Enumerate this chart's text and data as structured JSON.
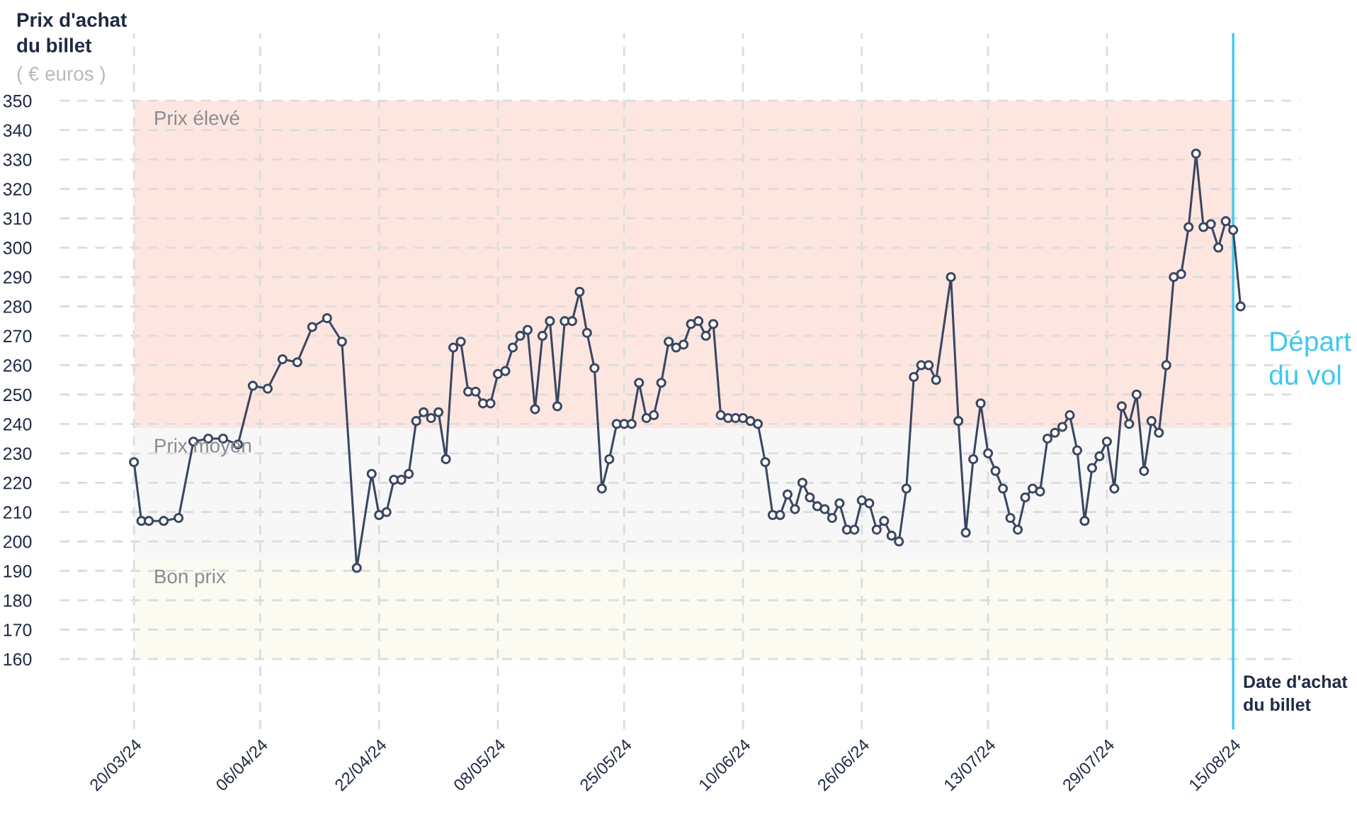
{
  "chart_data": {
    "type": "line",
    "xlabel": "Date d'achat\ndu billet",
    "ylabel": "Prix d'achat\ndu billet",
    "annotations": [
      "( € euros )"
    ],
    "x": [
      "2024-03-20",
      "2024-03-21",
      "2024-03-22",
      "2024-03-24",
      "2024-03-26",
      "2024-03-28",
      "2024-03-30",
      "2024-04-01",
      "2024-04-03",
      "2024-04-05",
      "2024-04-07",
      "2024-04-09",
      "2024-04-11",
      "2024-04-13",
      "2024-04-15",
      "2024-04-17",
      "2024-04-19",
      "2024-04-21",
      "2024-04-22",
      "2024-04-23",
      "2024-04-24",
      "2024-04-25",
      "2024-04-26",
      "2024-04-27",
      "2024-04-28",
      "2024-04-29",
      "2024-04-30",
      "2024-05-01",
      "2024-05-02",
      "2024-05-03",
      "2024-05-04",
      "2024-05-05",
      "2024-05-06",
      "2024-05-07",
      "2024-05-08",
      "2024-05-09",
      "2024-05-10",
      "2024-05-11",
      "2024-05-12",
      "2024-05-13",
      "2024-05-14",
      "2024-05-15",
      "2024-05-16",
      "2024-05-17",
      "2024-05-18",
      "2024-05-19",
      "2024-05-20",
      "2024-05-21",
      "2024-05-22",
      "2024-05-23",
      "2024-05-24",
      "2024-05-25",
      "2024-05-26",
      "2024-05-27",
      "2024-05-28",
      "2024-05-29",
      "2024-05-30",
      "2024-05-31",
      "2024-06-01",
      "2024-06-02",
      "2024-06-03",
      "2024-06-04",
      "2024-06-05",
      "2024-06-06",
      "2024-06-07",
      "2024-06-08",
      "2024-06-09",
      "2024-06-10",
      "2024-06-11",
      "2024-06-12",
      "2024-06-13",
      "2024-06-14",
      "2024-06-15",
      "2024-06-16",
      "2024-06-17",
      "2024-06-18",
      "2024-06-19",
      "2024-06-20",
      "2024-06-21",
      "2024-06-22",
      "2024-06-23",
      "2024-06-24",
      "2024-06-25",
      "2024-06-26",
      "2024-06-27",
      "2024-06-28",
      "2024-06-29",
      "2024-06-30",
      "2024-07-01",
      "2024-07-02",
      "2024-07-03",
      "2024-07-04",
      "2024-07-05",
      "2024-07-06",
      "2024-07-08",
      "2024-07-09",
      "2024-07-10",
      "2024-07-11",
      "2024-07-12",
      "2024-07-13",
      "2024-07-14",
      "2024-07-15",
      "2024-07-16",
      "2024-07-17",
      "2024-07-18",
      "2024-07-19",
      "2024-07-20",
      "2024-07-21",
      "2024-07-22",
      "2024-07-23",
      "2024-07-24",
      "2024-07-25",
      "2024-07-26",
      "2024-07-27",
      "2024-07-28",
      "2024-07-29",
      "2024-07-30",
      "2024-07-31",
      "2024-08-01",
      "2024-08-02",
      "2024-08-03",
      "2024-08-04",
      "2024-08-05",
      "2024-08-06",
      "2024-08-07",
      "2024-08-08",
      "2024-08-09",
      "2024-08-10",
      "2024-08-11",
      "2024-08-12",
      "2024-08-13",
      "2024-08-14",
      "2024-08-15",
      "2024-08-16"
    ],
    "series": [
      {
        "color": "#3b4761",
        "values": [
          227,
          207,
          207,
          207,
          208,
          234,
          235,
          235,
          233,
          253,
          252,
          262,
          261,
          273,
          276,
          268,
          191,
          223,
          209,
          210,
          221,
          221,
          223,
          241,
          244,
          242,
          244,
          228,
          266,
          268,
          251,
          251,
          247,
          247,
          257,
          258,
          266,
          270,
          272,
          245,
          270,
          275,
          246,
          275,
          275,
          285,
          271,
          259,
          218,
          228,
          240,
          240,
          240,
          254,
          242,
          243,
          254,
          268,
          266,
          267,
          274,
          275,
          270,
          274,
          243,
          242,
          242,
          242,
          241,
          240,
          227,
          209,
          209,
          216,
          211,
          220,
          215,
          212,
          211,
          208,
          213,
          204,
          204,
          214,
          213,
          204,
          207,
          202,
          200,
          218,
          256,
          260,
          260,
          255,
          290,
          241,
          203,
          228,
          247,
          230,
          224,
          218,
          208,
          204,
          215,
          218,
          217,
          235,
          237,
          239,
          243,
          231,
          207,
          225,
          229,
          234,
          218,
          246,
          240,
          250,
          224,
          241,
          237,
          260,
          290,
          291,
          307,
          332,
          307,
          308,
          300,
          309,
          306,
          280
        ]
      }
    ],
    "xlim": [
      "2024-03-10",
      "2024-08-24"
    ],
    "xticks": [
      {
        "value": "2024-03-20",
        "label": "20/03/24"
      },
      {
        "value": "2024-04-06",
        "label": "06/04/24"
      },
      {
        "value": "2024-04-22",
        "label": "22/04/24"
      },
      {
        "value": "2024-05-08",
        "label": "08/05/24"
      },
      {
        "value": "2024-05-25",
        "label": "25/05/24"
      },
      {
        "value": "2024-06-10",
        "label": "10/06/24"
      },
      {
        "value": "2024-06-26",
        "label": "26/06/24"
      },
      {
        "value": "2024-07-13",
        "label": "13/07/24"
      },
      {
        "value": "2024-07-29",
        "label": "29/07/24"
      },
      {
        "value": "2024-08-15",
        "label": "15/08/24"
      }
    ],
    "ylim": [
      136,
      373
    ],
    "yticks": [
      160,
      170,
      180,
      190,
      200,
      210,
      220,
      230,
      240,
      250,
      260,
      270,
      280,
      290,
      300,
      310,
      320,
      330,
      340,
      350
    ],
    "bands": [
      {
        "axis": "y",
        "from": 238.5,
        "to": 350,
        "label": "Prix élevé",
        "color": "#fde6e0"
      },
      {
        "axis": "y",
        "from": 194,
        "to": 238.5,
        "label": "Prix moyen",
        "color": "#f7f7f8"
      },
      {
        "axis": "y",
        "from": 160,
        "to": 194,
        "label": "Bon prix",
        "color": "#fbfbf2"
      }
    ],
    "ref_lines": [
      {
        "axis": "x",
        "value": "2024-08-15",
        "label": "Départ\ndu vol",
        "color": "#3ec8f0",
        "line_style": "solid"
      }
    ],
    "grid": true,
    "marker": "circle",
    "line_style": "solid"
  }
}
